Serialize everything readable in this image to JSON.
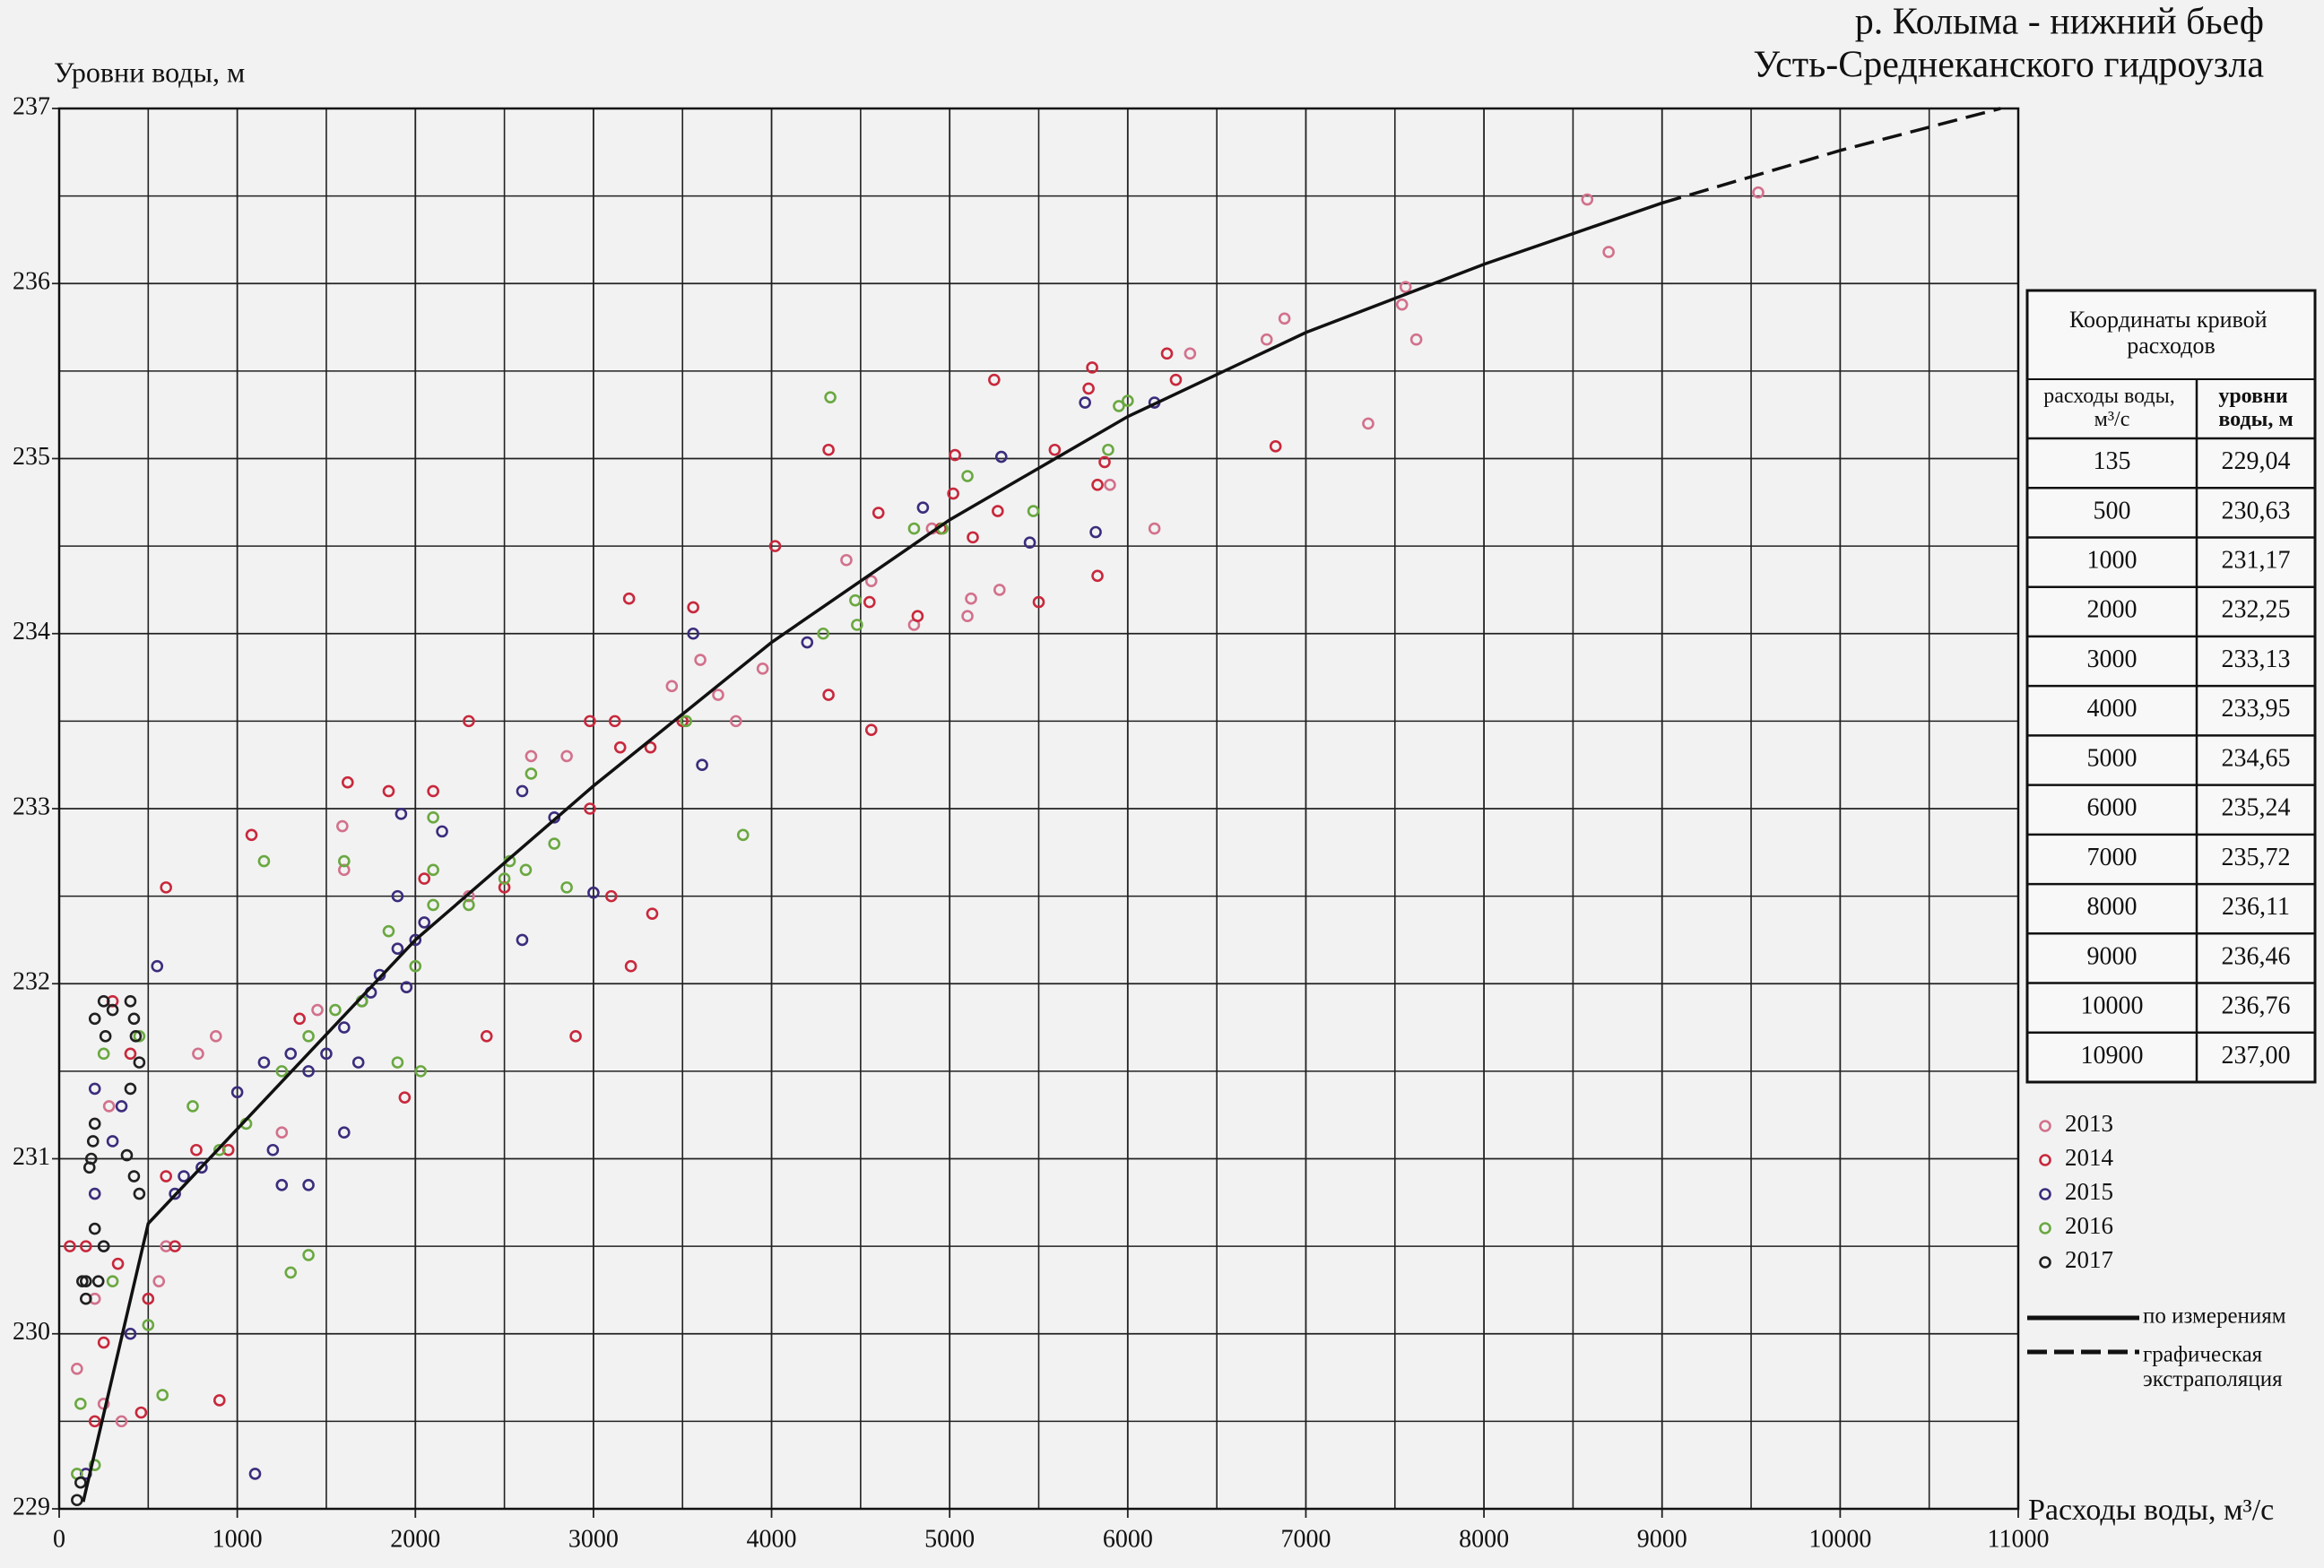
{
  "chart_data": {
    "type": "scatter",
    "title": "р. Колыма - нижний бьеф",
    "subtitle": "Усть-Среднеканского гидроузла",
    "ylabel": "Уровни воды, м",
    "xlabel": "Расходы воды, м³/с",
    "xlim": [
      0,
      11000
    ],
    "ylim": [
      229,
      237
    ],
    "xticks": [
      0,
      1000,
      2000,
      3000,
      4000,
      5000,
      6000,
      7000,
      8000,
      9000,
      10000,
      11000
    ],
    "yticks": [
      229,
      230,
      231,
      232,
      233,
      234,
      235,
      236,
      237
    ],
    "grid": true,
    "series": [
      {
        "name": "2013",
        "color": "#d2718c",
        "x": [
          8580,
          8700,
          9540,
          7560,
          7540,
          7620,
          7350,
          6880,
          6780,
          6350,
          6150,
          4900,
          5120,
          5100,
          5280,
          4420,
          4560,
          3950,
          3600,
          3700,
          3440,
          2650,
          2850,
          1590,
          1600,
          880,
          780,
          280,
          200,
          100,
          350,
          560,
          1250,
          2300,
          4800,
          5900,
          3800,
          1450,
          600,
          250
        ],
        "values": [
          236.48,
          236.18,
          236.52,
          235.98,
          235.88,
          235.68,
          235.2,
          235.8,
          235.68,
          235.6,
          234.6,
          234.6,
          234.2,
          234.1,
          234.25,
          234.42,
          234.3,
          233.8,
          233.85,
          233.65,
          233.7,
          233.3,
          233.3,
          232.9,
          232.65,
          231.7,
          231.6,
          231.3,
          230.2,
          229.8,
          229.5,
          230.3,
          231.15,
          232.5,
          234.05,
          234.85,
          233.5,
          231.85,
          230.5,
          229.6
        ]
      },
      {
        "name": "2014",
        "color": "#c8283c",
        "x": [
          5250,
          5800,
          5780,
          6220,
          6270,
          6830,
          5590,
          5870,
          5830,
          5030,
          4320,
          4600,
          5020,
          5270,
          5130,
          4550,
          4820,
          5500,
          5830,
          4020,
          4560,
          3200,
          3560,
          2980,
          3120,
          3320,
          3150,
          2300,
          2100,
          1850,
          1620,
          1080,
          600,
          3100,
          3330,
          3210,
          2900,
          2400,
          1940,
          2050,
          2500,
          1350,
          950,
          770,
          600,
          900,
          460,
          200,
          250,
          330,
          400,
          300,
          150,
          60,
          650,
          500,
          2980,
          3500,
          4950,
          4320
        ],
        "values": [
          235.45,
          235.52,
          235.4,
          235.6,
          235.45,
          235.07,
          235.05,
          234.98,
          234.85,
          235.02,
          235.05,
          234.69,
          234.8,
          234.7,
          234.55,
          234.18,
          234.1,
          234.18,
          234.33,
          234.5,
          233.45,
          234.2,
          234.15,
          233.5,
          233.5,
          233.35,
          233.35,
          233.5,
          233.1,
          233.1,
          233.15,
          232.85,
          232.55,
          232.5,
          232.4,
          232.1,
          231.7,
          231.7,
          231.35,
          232.6,
          232.55,
          231.8,
          231.05,
          231.05,
          230.9,
          229.62,
          229.55,
          229.5,
          229.95,
          230.4,
          231.6,
          231.9,
          230.5,
          230.5,
          230.5,
          230.2,
          233,
          233.5,
          234.6,
          233.65
        ]
      },
      {
        "name": "2015",
        "color": "#3c2c7c",
        "x": [
          6150,
          5760,
          5290,
          4850,
          5450,
          5820,
          4200,
          3560,
          3610,
          2600,
          2780,
          1920,
          3000,
          2600,
          2050,
          1900,
          1700,
          1750,
          1800,
          1900,
          2000,
          1950,
          1600,
          1500,
          1400,
          1300,
          1150,
          1000,
          800,
          700,
          650,
          1600,
          1400,
          1250,
          1100,
          150,
          200,
          300,
          350,
          550,
          200,
          400,
          250,
          2150,
          1680,
          1200
        ],
        "values": [
          235.32,
          235.32,
          235.01,
          234.72,
          234.52,
          234.58,
          233.95,
          234,
          233.25,
          233.1,
          232.95,
          232.97,
          232.52,
          232.25,
          232.35,
          232.5,
          231.9,
          231.95,
          232.05,
          232.2,
          232.25,
          231.98,
          231.75,
          231.6,
          231.5,
          231.6,
          231.55,
          231.38,
          230.95,
          230.9,
          230.8,
          231.15,
          230.85,
          230.85,
          229.2,
          229.2,
          231.4,
          231.1,
          231.3,
          232.1,
          230.8,
          230,
          230.5,
          232.87,
          231.55,
          231.05
        ]
      },
      {
        "name": "2016",
        "color": "#6aa840",
        "x": [
          4330,
          6000,
          5950,
          5890,
          5470,
          5100,
          4800,
          4960,
          4290,
          4480,
          4470,
          3840,
          3520,
          2650,
          2780,
          2530,
          2620,
          2100,
          2100,
          2300,
          2100,
          2850,
          2000,
          1900,
          2030,
          1600,
          1150,
          1400,
          1250,
          1300,
          1400,
          900,
          750,
          580,
          500,
          120,
          200,
          100,
          300,
          450,
          250,
          1700,
          1850,
          2500,
          1050,
          1550
        ],
        "values": [
          235.35,
          235.33,
          235.3,
          235.05,
          234.7,
          234.9,
          234.6,
          234.6,
          234,
          234.05,
          234.19,
          232.85,
          233.5,
          233.2,
          232.8,
          232.7,
          232.65,
          232.95,
          232.65,
          232.45,
          232.45,
          232.55,
          232.1,
          231.55,
          231.5,
          232.7,
          232.7,
          231.7,
          231.5,
          230.35,
          230.45,
          231.05,
          231.3,
          229.65,
          230.05,
          229.6,
          229.25,
          229.2,
          230.3,
          231.7,
          231.6,
          231.9,
          232.3,
          232.6,
          231.2,
          231.85
        ]
      },
      {
        "name": "2017",
        "color": "#202020",
        "x": [
          400,
          420,
          430,
          450,
          400,
          380,
          420,
          200,
          190,
          180,
          170,
          200,
          220,
          250,
          300,
          250,
          200,
          260,
          150,
          120,
          100,
          450,
          130,
          150
        ],
        "values": [
          231.9,
          231.8,
          231.7,
          231.55,
          231.4,
          231.02,
          230.9,
          231.2,
          231.1,
          231,
          230.95,
          230.6,
          230.3,
          230.5,
          231.85,
          231.9,
          231.8,
          231.7,
          230.2,
          229.15,
          229.05,
          230.8,
          230.3,
          230.3
        ]
      }
    ],
    "curves": [
      {
        "name": "по измерениям",
        "style": "solid",
        "color": "#111111",
        "x": [
          135,
          500,
          1000,
          2000,
          3000,
          4000,
          5000,
          6000,
          7000,
          8000,
          9000
        ],
        "values": [
          229.04,
          230.63,
          231.17,
          232.25,
          233.13,
          233.95,
          234.65,
          235.24,
          235.72,
          236.11,
          236.46
        ]
      },
      {
        "name": "графическая экстраполяция",
        "style": "dashed",
        "color": "#111111",
        "x": [
          9000,
          10000,
          10900
        ],
        "values": [
          236.46,
          236.76,
          237
        ]
      }
    ]
  },
  "table": {
    "title": "Координаты кривой расходов",
    "columns": [
      "расходы воды, м³/с",
      "уровни воды, м"
    ],
    "rows": [
      [
        "135",
        "229,04"
      ],
      [
        "500",
        "230,63"
      ],
      [
        "1000",
        "231,17"
      ],
      [
        "2000",
        "232,25"
      ],
      [
        "3000",
        "233,13"
      ],
      [
        "4000",
        "233,95"
      ],
      [
        "5000",
        "234,65"
      ],
      [
        "6000",
        "235,24"
      ],
      [
        "7000",
        "235,72"
      ],
      [
        "8000",
        "236,11"
      ],
      [
        "9000",
        "236,46"
      ],
      [
        "10000",
        "236,76"
      ],
      [
        "10900",
        "237,00"
      ]
    ]
  }
}
